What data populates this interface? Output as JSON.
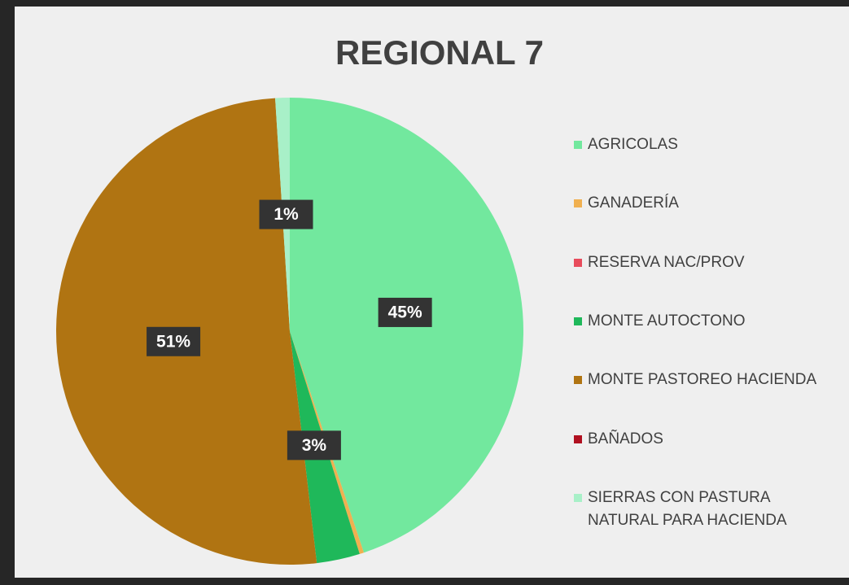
{
  "chart_data": {
    "type": "pie",
    "title": "REGIONAL 7",
    "categories": [
      "AGRICOLAS",
      "GANADERÍA",
      "RESERVA NAC/PROV",
      "MONTE AUTOCTONO",
      "MONTE PASTOREO HACIENDA",
      "BAÑADOS",
      "SIERRAS CON PASTURA NATURAL PARA HACIENDA"
    ],
    "values": [
      45,
      0.3,
      0,
      3,
      51,
      0,
      1
    ],
    "value_labels": [
      "45%",
      null,
      null,
      "3%",
      "51%",
      null,
      "1%"
    ],
    "colors": [
      "#72e89e",
      "#f0b050",
      "#e84c5c",
      "#1fb85a",
      "#b07412",
      "#b01020",
      "#a8f0c8"
    ],
    "legend": "right"
  }
}
